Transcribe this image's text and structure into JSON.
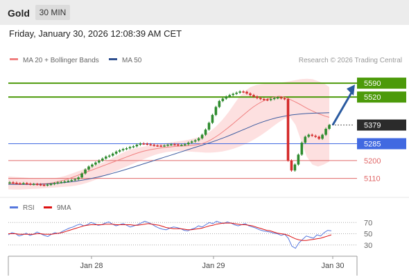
{
  "header": {
    "asset": "Gold",
    "timeframe": "30 MIN"
  },
  "datetime": "Friday, January 30, 2026 12:08:39 AM CET",
  "legend_main": [
    {
      "label": "MA 20 + Bollinger Bands",
      "color": "#f08080"
    },
    {
      "label": "MA 50",
      "color": "#2f4f8f"
    }
  ],
  "copyright": "Research © 2026 Trading Central",
  "legend_rsi": [
    {
      "label": "RSI",
      "color": "#5577dd"
    },
    {
      "label": "9MA",
      "color": "#dd1111"
    }
  ],
  "colors": {
    "resistance": "#4c9a0a",
    "pivot": "#4169e1",
    "support": "#e06666",
    "last": "#2b2b2b",
    "up": "#2e8b2e",
    "down": "#d42a2a",
    "arrow": "#2a5aa0"
  },
  "chart_data": {
    "type": "line",
    "price_range": [
      5060,
      5660
    ],
    "levels": [
      {
        "value": 5590,
        "label": "5590",
        "kind": "resistance"
      },
      {
        "value": 5520,
        "label": "5520",
        "kind": "resistance"
      },
      {
        "value": 5379,
        "label": "5379",
        "kind": "last"
      },
      {
        "value": 5285,
        "label": "5285",
        "kind": "pivot"
      },
      {
        "value": 5200,
        "label": "5200",
        "kind": "support"
      },
      {
        "value": 5110,
        "label": "5110",
        "kind": "support"
      }
    ],
    "x_labels": [
      "Jan 28",
      "Jan 29",
      "Jan 30"
    ],
    "price": [
      5090,
      5088,
      5085,
      5084,
      5086,
      5083,
      5081,
      5082,
      5080,
      5078,
      5076,
      5079,
      5082,
      5086,
      5090,
      5092,
      5095,
      5098,
      5102,
      5106,
      5115,
      5135,
      5155,
      5170,
      5180,
      5190,
      5200,
      5210,
      5220,
      5225,
      5235,
      5245,
      5252,
      5258,
      5262,
      5268,
      5272,
      5280,
      5286,
      5285,
      5282,
      5280,
      5276,
      5275,
      5274,
      5276,
      5280,
      5282,
      5281,
      5278,
      5279,
      5282,
      5290,
      5296,
      5302,
      5312,
      5330,
      5356,
      5390,
      5430,
      5470,
      5500,
      5512,
      5522,
      5530,
      5536,
      5542,
      5548,
      5546,
      5538,
      5530,
      5522,
      5515,
      5510,
      5508,
      5505,
      5510,
      5515,
      5518,
      5514,
      5510,
      5200,
      5150,
      5180,
      5230,
      5290,
      5320,
      5330,
      5325,
      5320,
      5310,
      5330,
      5360,
      5379
    ],
    "ma20": [
      5085,
      5085,
      5084,
      5083,
      5083,
      5082,
      5082,
      5082,
      5083,
      5084,
      5086,
      5090,
      5095,
      5100,
      5106,
      5114,
      5122,
      5130,
      5138,
      5146,
      5154,
      5162,
      5170,
      5178,
      5186,
      5194,
      5202,
      5210,
      5218,
      5226,
      5234,
      5241,
      5247,
      5252,
      5256,
      5260,
      5263,
      5266,
      5268,
      5270,
      5272,
      5273,
      5274,
      5276,
      5278,
      5281,
      5286,
      5294,
      5305,
      5318,
      5332,
      5348,
      5365,
      5382,
      5400,
      5418,
      5436,
      5454,
      5470,
      5484,
      5496,
      5506,
      5514,
      5520,
      5524,
      5522,
      5515,
      5505,
      5495,
      5484,
      5472,
      5460,
      5450,
      5440,
      5432,
      5424,
      5418
    ],
    "bb_upper": [
      5120,
      5118,
      5116,
      5114,
      5112,
      5110,
      5108,
      5108,
      5110,
      5115,
      5122,
      5132,
      5142,
      5152,
      5162,
      5172,
      5182,
      5192,
      5205,
      5220,
      5235,
      5248,
      5258,
      5265,
      5270,
      5275,
      5280,
      5284,
      5288,
      5292,
      5296,
      5300,
      5305,
      5312,
      5320,
      5332,
      5350,
      5375,
      5405,
      5440,
      5480,
      5520,
      5550,
      5570,
      5580,
      5585,
      5588,
      5590,
      5592,
      5595,
      5600,
      5605,
      5610,
      5612,
      5610,
      5600,
      5590,
      5570
    ],
    "bb_lower": [
      5055,
      5054,
      5054,
      5055,
      5057,
      5058,
      5060,
      5062,
      5064,
      5066,
      5068,
      5070,
      5074,
      5080,
      5088,
      5098,
      5110,
      5122,
      5134,
      5146,
      5158,
      5170,
      5182,
      5194,
      5206,
      5218,
      5228,
      5236,
      5242,
      5246,
      5248,
      5248,
      5246,
      5244,
      5242,
      5240,
      5240,
      5242,
      5246,
      5252,
      5260,
      5270,
      5282,
      5296,
      5312,
      5330,
      5350,
      5372,
      5392,
      5410,
      5420,
      5380,
      5300,
      5220,
      5180,
      5170,
      5180,
      5195
    ],
    "ma50": [
      5080,
      5080,
      5080,
      5080,
      5081,
      5082,
      5084,
      5087,
      5091,
      5096,
      5102,
      5109,
      5117,
      5126,
      5136,
      5147,
      5158,
      5170,
      5182,
      5194,
      5206,
      5218,
      5230,
      5242,
      5254,
      5266,
      5278,
      5290,
      5303,
      5317,
      5332,
      5348,
      5364,
      5380,
      5394,
      5406,
      5416,
      5424,
      5430,
      5434,
      5437,
      5439,
      5440,
      5441
    ],
    "rsi": [
      48,
      52,
      50,
      46,
      48,
      51,
      47,
      49,
      53,
      50,
      47,
      45,
      49,
      52,
      50,
      54,
      57,
      60,
      62,
      65,
      67,
      64,
      66,
      70,
      68,
      65,
      66,
      69,
      71,
      67,
      64,
      66,
      68,
      65,
      62,
      64,
      66,
      69,
      72,
      70,
      67,
      63,
      60,
      58,
      57,
      60,
      62,
      61,
      59,
      56,
      55,
      58,
      60,
      64,
      62,
      66,
      70,
      68,
      72,
      70,
      68,
      71,
      69,
      66,
      64,
      66,
      68,
      64,
      62,
      60,
      57,
      55,
      54,
      53,
      51,
      50,
      47,
      49,
      42,
      28,
      24,
      34,
      40,
      46,
      44,
      42,
      48,
      46,
      52,
      56,
      55
    ],
    "rsi_ma": [
      50,
      50,
      50,
      49,
      49,
      49,
      49,
      49,
      50,
      50,
      49,
      49,
      49,
      50,
      51,
      52,
      54,
      56,
      58,
      60,
      62,
      64,
      65,
      66,
      66,
      66,
      66,
      67,
      67,
      67,
      66,
      66,
      66,
      66,
      66,
      65,
      65,
      66,
      67,
      68,
      67,
      66,
      65,
      63,
      61,
      60,
      59,
      59,
      59,
      58,
      57,
      57,
      58,
      59,
      60,
      62,
      64,
      65,
      67,
      68,
      69,
      69,
      69,
      68,
      67,
      66,
      66,
      65,
      64,
      62,
      60,
      58,
      56,
      55,
      53,
      51,
      50,
      49,
      47,
      44,
      41,
      39,
      38,
      38,
      39,
      40,
      41,
      42,
      44,
      46,
      48
    ],
    "rsi_levels": [
      70,
      50,
      30
    ],
    "rsi_range": [
      10,
      90
    ]
  }
}
